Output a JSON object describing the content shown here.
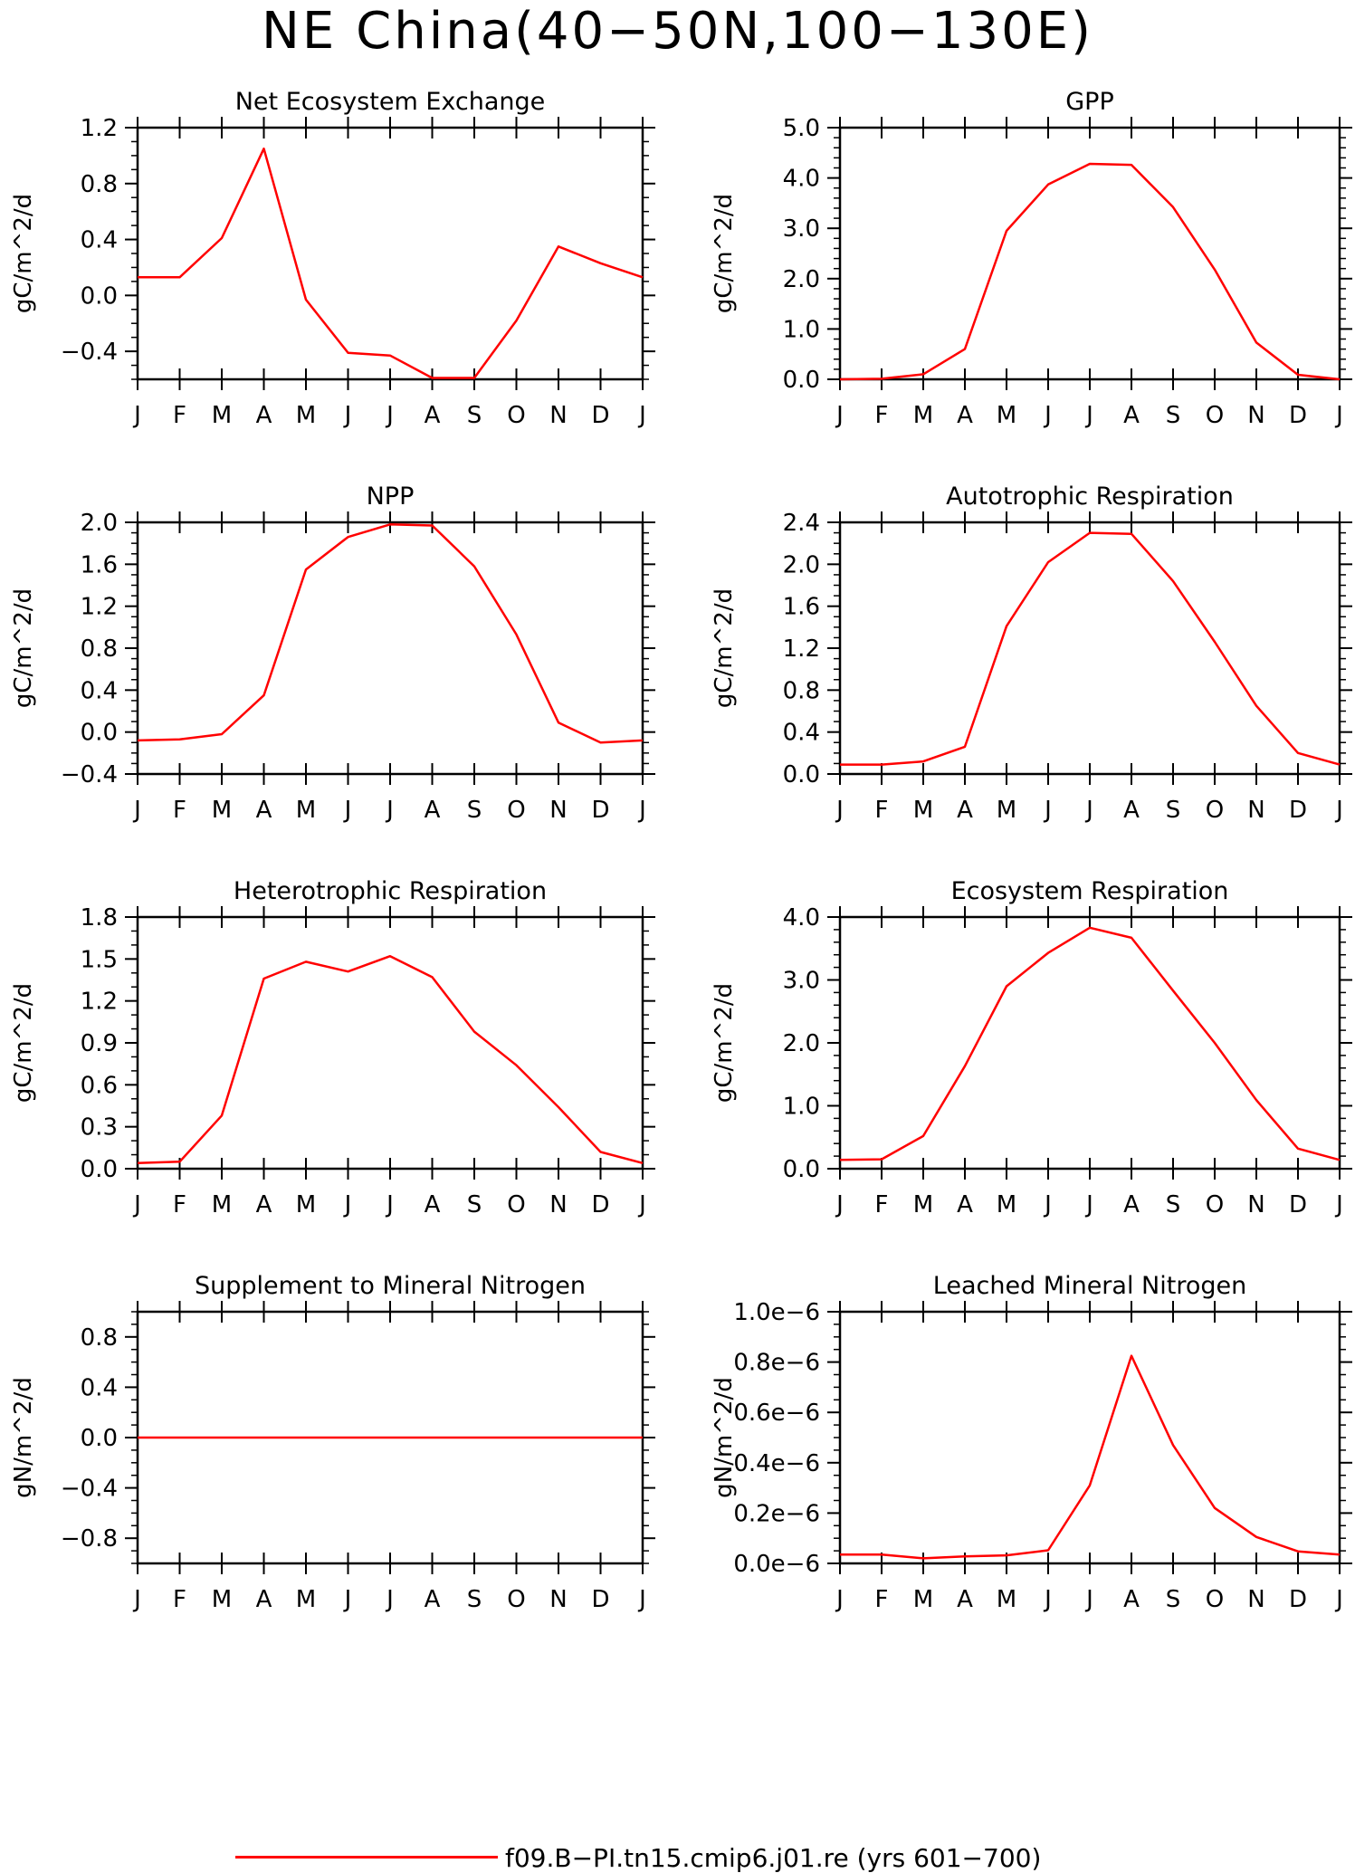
{
  "title": "NE China(40−50N,100−130E)",
  "legend": {
    "label": "f09.B−PI.tn15.cmip6.j01.re (yrs 601−700)",
    "color": "#ff0000"
  },
  "colors": {
    "line": "#ff0000",
    "axis": "#000000"
  },
  "chart_data": [
    {
      "type": "line",
      "title": "Net Ecosystem Exchange",
      "ylabel": "gC/m^2/d",
      "x": [
        "J",
        "F",
        "M",
        "A",
        "M",
        "J",
        "J",
        "A",
        "S",
        "O",
        "N",
        "D",
        "J"
      ],
      "ylim": [
        -0.6,
        1.2
      ],
      "yticks": [
        -0.4,
        0.0,
        0.4,
        0.8,
        1.2
      ],
      "yticklabels": [
        "−0.4",
        "0.0",
        "0.4",
        "0.8",
        "1.2"
      ],
      "minor_step": 0.1,
      "values": [
        0.13,
        0.13,
        0.41,
        1.05,
        -0.03,
        -0.41,
        -0.43,
        -0.59,
        -0.59,
        -0.18,
        0.35,
        0.23,
        0.13
      ]
    },
    {
      "type": "line",
      "title": "GPP",
      "ylabel": "gC/m^2/d",
      "x": [
        "J",
        "F",
        "M",
        "A",
        "M",
        "J",
        "J",
        "A",
        "S",
        "O",
        "N",
        "D",
        "J"
      ],
      "ylim": [
        0.0,
        5.0
      ],
      "yticks": [
        0.0,
        1.0,
        2.0,
        3.0,
        4.0,
        5.0
      ],
      "yticklabels": [
        "0.0",
        "1.0",
        "2.0",
        "3.0",
        "4.0",
        "5.0"
      ],
      "minor_step": 0.2,
      "values": [
        0.0,
        0.01,
        0.1,
        0.6,
        2.95,
        3.87,
        4.28,
        4.26,
        3.42,
        2.18,
        0.73,
        0.09,
        0.0
      ]
    },
    {
      "type": "line",
      "title": "NPP",
      "ylabel": "gC/m^2/d",
      "x": [
        "J",
        "F",
        "M",
        "A",
        "M",
        "J",
        "J",
        "A",
        "S",
        "O",
        "N",
        "D",
        "J"
      ],
      "ylim": [
        -0.4,
        2.0
      ],
      "yticks": [
        -0.4,
        0.0,
        0.4,
        0.8,
        1.2,
        1.6,
        2.0
      ],
      "yticklabels": [
        "−0.4",
        "0.0",
        "0.4",
        "0.8",
        "1.2",
        "1.6",
        "2.0"
      ],
      "minor_step": 0.1,
      "values": [
        -0.08,
        -0.07,
        -0.02,
        0.35,
        1.55,
        1.86,
        1.98,
        1.97,
        1.58,
        0.93,
        0.09,
        -0.1,
        -0.08
      ]
    },
    {
      "type": "line",
      "title": "Autotrophic Respiration",
      "ylabel": "gC/m^2/d",
      "x": [
        "J",
        "F",
        "M",
        "A",
        "M",
        "J",
        "J",
        "A",
        "S",
        "O",
        "N",
        "D",
        "J"
      ],
      "ylim": [
        0.0,
        2.4
      ],
      "yticks": [
        0.0,
        0.4,
        0.8,
        1.2,
        1.6,
        2.0,
        2.4
      ],
      "yticklabels": [
        "0.0",
        "0.4",
        "0.8",
        "1.2",
        "1.6",
        "2.0",
        "2.4"
      ],
      "minor_step": 0.1,
      "values": [
        0.09,
        0.09,
        0.12,
        0.26,
        1.41,
        2.02,
        2.3,
        2.29,
        1.84,
        1.26,
        0.65,
        0.2,
        0.09
      ]
    },
    {
      "type": "line",
      "title": "Heterotrophic Respiration",
      "ylabel": "gC/m^2/d",
      "x": [
        "J",
        "F",
        "M",
        "A",
        "M",
        "J",
        "J",
        "A",
        "S",
        "O",
        "N",
        "D",
        "J"
      ],
      "ylim": [
        0.0,
        1.8
      ],
      "yticks": [
        0.0,
        0.3,
        0.6,
        0.9,
        1.2,
        1.5,
        1.8
      ],
      "yticklabels": [
        "0.0",
        "0.3",
        "0.6",
        "0.9",
        "1.2",
        "1.5",
        "1.8"
      ],
      "minor_step": 0.1,
      "values": [
        0.04,
        0.05,
        0.38,
        1.36,
        1.48,
        1.41,
        1.52,
        1.37,
        0.98,
        0.74,
        0.44,
        0.12,
        0.04
      ]
    },
    {
      "type": "line",
      "title": "Ecosystem Respiration",
      "ylabel": "gC/m^2/d",
      "x": [
        "J",
        "F",
        "M",
        "A",
        "M",
        "J",
        "J",
        "A",
        "S",
        "O",
        "N",
        "D",
        "J"
      ],
      "ylim": [
        0.0,
        4.0
      ],
      "yticks": [
        0.0,
        1.0,
        2.0,
        3.0,
        4.0
      ],
      "yticklabels": [
        "0.0",
        "1.0",
        "2.0",
        "3.0",
        "4.0"
      ],
      "minor_step": 0.2,
      "values": [
        0.14,
        0.15,
        0.52,
        1.63,
        2.9,
        3.43,
        3.83,
        3.67,
        2.83,
        2.0,
        1.09,
        0.32,
        0.14
      ]
    },
    {
      "type": "line",
      "title": "Supplement to Mineral Nitrogen",
      "ylabel": "gN/m^2/d",
      "x": [
        "J",
        "F",
        "M",
        "A",
        "M",
        "J",
        "J",
        "A",
        "S",
        "O",
        "N",
        "D",
        "J"
      ],
      "ylim": [
        -1.0,
        1.0
      ],
      "yticks": [
        -0.8,
        -0.4,
        0.0,
        0.4,
        0.8
      ],
      "yticklabels": [
        "−0.8",
        "−0.4",
        "0.0",
        "0.4",
        "0.8"
      ],
      "minor_step": 0.1,
      "values": [
        0,
        0,
        0,
        0,
        0,
        0,
        0,
        0,
        0,
        0,
        0,
        0,
        0
      ]
    },
    {
      "type": "line",
      "title": "Leached Mineral Nitrogen",
      "ylabel": "gN/m^2/d",
      "x": [
        "J",
        "F",
        "M",
        "A",
        "M",
        "J",
        "J",
        "A",
        "S",
        "O",
        "N",
        "D",
        "J"
      ],
      "ylim": [
        0.0,
        1e-06
      ],
      "yticks": [
        0.0,
        2e-07,
        4e-07,
        6e-07,
        8e-07,
        1e-06
      ],
      "yticklabels": [
        "0.0e−6",
        "0.2e−6",
        "0.4e−6",
        "0.6e−6",
        "0.8e−6",
        "1.0e−6"
      ],
      "minor_step": 5e-08,
      "values": [
        3.5e-08,
        3.5e-08,
        2e-08,
        2.8e-08,
        3.2e-08,
        5.2e-08,
        3.1e-07,
        8.25e-07,
        4.7e-07,
        2.2e-07,
        1.05e-07,
        4.8e-08,
        3.5e-08
      ]
    }
  ]
}
